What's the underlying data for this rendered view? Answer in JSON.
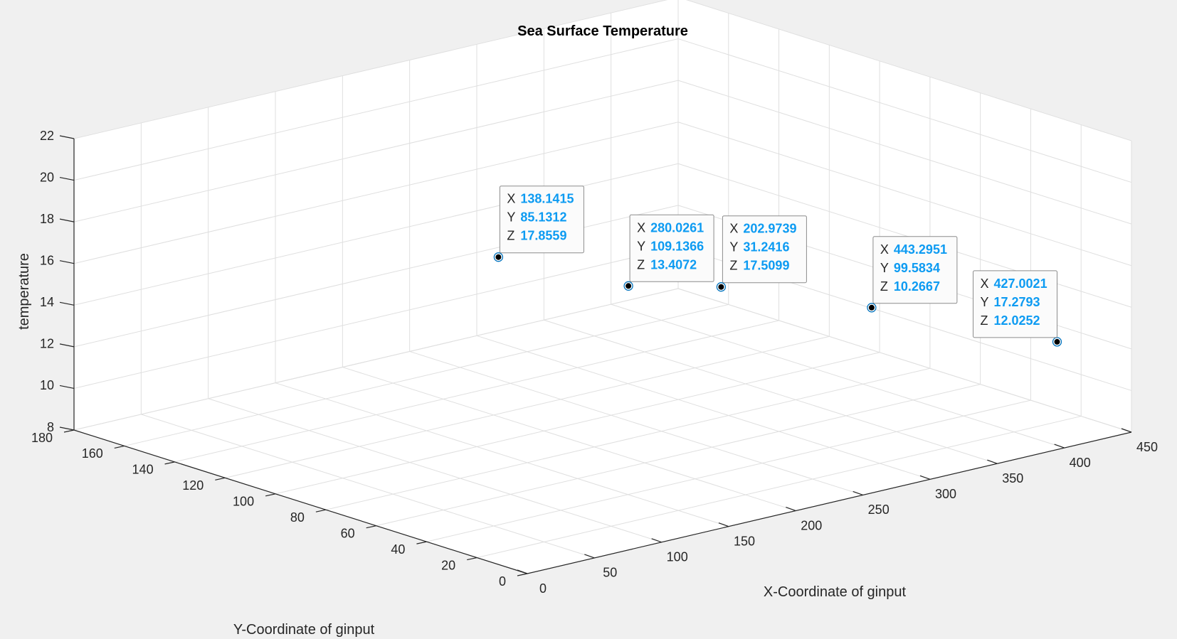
{
  "chart_data": {
    "type": "scatter",
    "title": "Sea Surface Temperature",
    "xlabel": "X-Coordinate of ginput",
    "ylabel": "Y-Coordinate of ginput",
    "zlabel": "temperature",
    "xlim": [
      0,
      450
    ],
    "ylim": [
      0,
      180
    ],
    "zlim": [
      8,
      22
    ],
    "xticks": [
      "0",
      "50",
      "100",
      "150",
      "200",
      "250",
      "300",
      "350",
      "400",
      "450"
    ],
    "yticks": [
      "0",
      "20",
      "40",
      "60",
      "80",
      "100",
      "120",
      "140",
      "160",
      "180"
    ],
    "zticks": [
      "8",
      "10",
      "12",
      "14",
      "16",
      "18",
      "20",
      "22"
    ],
    "grid": true,
    "marker_color": "#0072bd",
    "datatip_value_color": "#0d9bf2",
    "datatips": [
      {
        "x": 138.1415,
        "y": 85.1312,
        "z": 17.8559,
        "x_text": "138.1415",
        "y_text": "85.1312",
        "z_text": "17.8559"
      },
      {
        "x": 280.0261,
        "y": 109.1366,
        "z": 13.4072,
        "x_text": "280.0261",
        "y_text": "109.1366",
        "z_text": "13.4072"
      },
      {
        "x": 202.9739,
        "y": 31.2416,
        "z": 17.5099,
        "x_text": "202.9739",
        "y_text": "31.2416",
        "z_text": "17.5099"
      },
      {
        "x": 443.2951,
        "y": 99.5834,
        "z": 10.2667,
        "x_text": "443.2951",
        "y_text": "99.5834",
        "z_text": "10.2667"
      },
      {
        "x": 427.0021,
        "y": 17.2793,
        "z": 12.0252,
        "x_text": "427.0021",
        "y_text": "17.2793",
        "z_text": "12.0252"
      }
    ],
    "tip_labels": {
      "x": "X",
      "y": "Y",
      "z": "Z"
    }
  }
}
